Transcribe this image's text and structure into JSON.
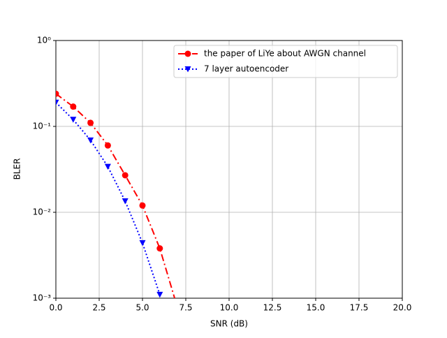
{
  "chart_data": {
    "type": "line",
    "xlabel": "SNR (dB)",
    "ylabel": "BLER",
    "x": [
      0,
      1,
      2,
      3,
      4,
      5,
      6,
      7
    ],
    "series": [
      {
        "name": "the paper of LiYe about AWGN channel",
        "color": "#ff0000",
        "linestyle": "dashdot",
        "marker": "circle",
        "values": [
          0.24,
          0.17,
          0.11,
          0.06,
          0.027,
          0.012,
          0.0038,
          0.0008
        ]
      },
      {
        "name": "7 layer autoencoder",
        "color": "#0000ff",
        "linestyle": "dotted",
        "marker": "triangle-down",
        "values": [
          0.19,
          0.12,
          0.069,
          0.034,
          0.0135,
          0.0044,
          0.0011,
          null
        ]
      }
    ],
    "xlim": [
      0,
      20
    ],
    "xticks": [
      {
        "value": 0,
        "label": "0.0"
      },
      {
        "value": 2.5,
        "label": "2.5"
      },
      {
        "value": 5,
        "label": "5.0"
      },
      {
        "value": 7.5,
        "label": "7.5"
      },
      {
        "value": 10,
        "label": "10.0"
      },
      {
        "value": 12.5,
        "label": "12.5"
      },
      {
        "value": 15,
        "label": "15.0"
      },
      {
        "value": 17.5,
        "label": "17.5"
      },
      {
        "value": 20,
        "label": "20.0"
      }
    ],
    "ylim": [
      0.001,
      1
    ],
    "yticks": [
      {
        "value": 0.001,
        "label": "10⁻³"
      },
      {
        "value": 0.01,
        "label": "10⁻²"
      },
      {
        "value": 0.1,
        "label": "10⁻¹"
      },
      {
        "value": 1,
        "label": "10⁰"
      }
    ],
    "yscale": "log",
    "grid": true,
    "legend": "upper right"
  }
}
